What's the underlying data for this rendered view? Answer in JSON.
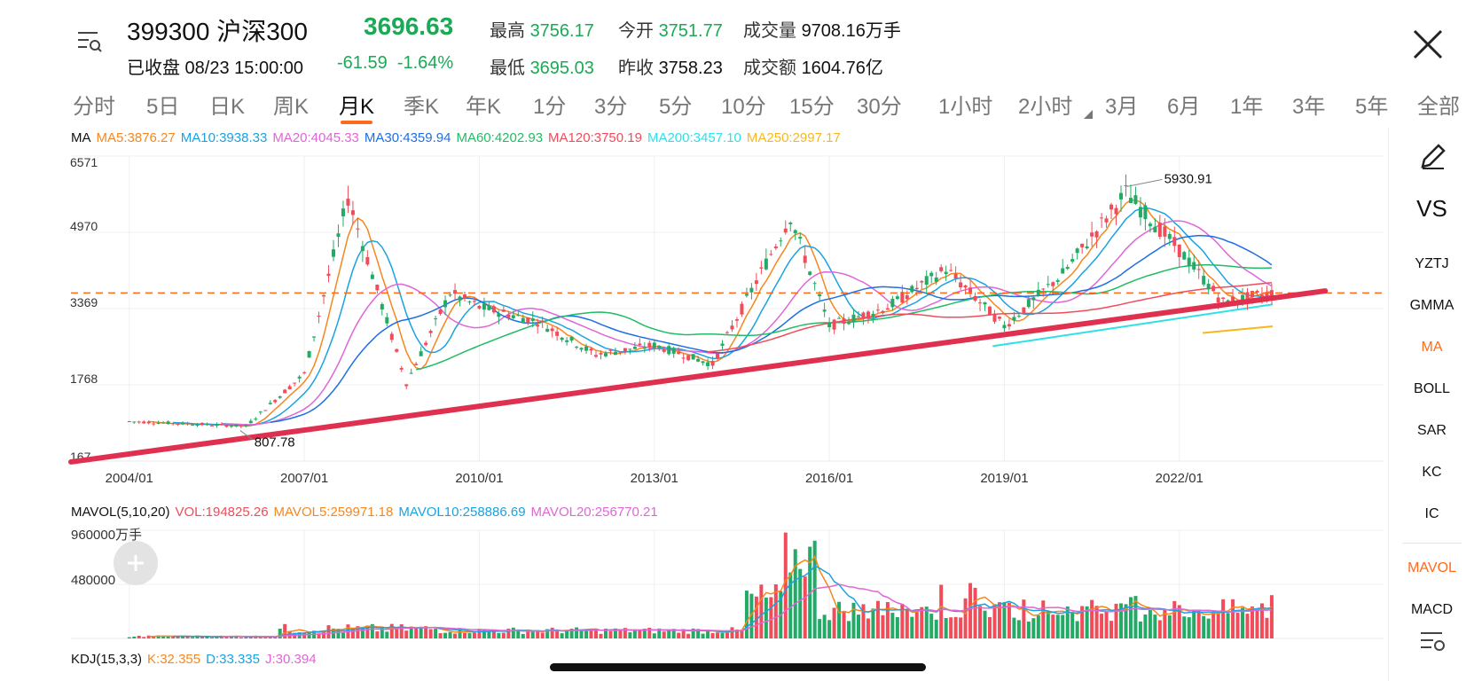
{
  "header": {
    "code_name": "399300 沪深300",
    "price": "3696.63",
    "status": "已收盘 08/23 15:00:00",
    "change": "-61.59",
    "change_pct": "-1.64%",
    "high_label": "最高",
    "high_value": "3756.17",
    "open_label": "今开",
    "open_value": "3751.77",
    "volume_label": "成交量",
    "volume_value": "9708.16万手",
    "low_label": "最低",
    "low_value": "3695.03",
    "prev_close_label": "昨收",
    "prev_close_value": "3758.23",
    "amount_label": "成交额",
    "amount_value": "1604.76亿"
  },
  "tabs": [
    "分时",
    "5日",
    "日K",
    "周K",
    "月K",
    "季K",
    "年K",
    "1分",
    "3分",
    "5分",
    "10分",
    "15分",
    "30分",
    "1小时",
    "2小时",
    "3月",
    "6月",
    "1年",
    "3年",
    "5年",
    "全部"
  ],
  "active_tab": "月K",
  "ma_legend": {
    "title": "MA",
    "items": [
      {
        "text": "MA5:3876.27",
        "color": "#f5871f"
      },
      {
        "text": "MA10:3938.33",
        "color": "#1aa3e0"
      },
      {
        "text": "MA20:4045.33",
        "color": "#e066d6"
      },
      {
        "text": "MA30:4359.94",
        "color": "#1e6fe6"
      },
      {
        "text": "MA60:4202.93",
        "color": "#22bb66"
      },
      {
        "text": "MA120:3750.19",
        "color": "#f04c5a"
      },
      {
        "text": "MA200:3457.10",
        "color": "#2ee0e8"
      },
      {
        "text": "MA250:2997.17",
        "color": "#f5b81f"
      }
    ]
  },
  "main_chart": {
    "y_ticks": [
      "6571",
      "4970",
      "3369",
      "1768",
      "167"
    ],
    "x_ticks": [
      "2004/01",
      "2007/01",
      "2010/01",
      "2013/01",
      "2016/01",
      "2019/01",
      "2022/01"
    ],
    "max_label": "5930.91",
    "min_label": "807.78"
  },
  "mavol_legend": {
    "title": "MAVOL(5,10,20)",
    "items": [
      {
        "text": "VOL:194825.26",
        "color": "#f04c5a"
      },
      {
        "text": "MAVOL5:259971.18",
        "color": "#f5871f"
      },
      {
        "text": "MAVOL10:258886.69",
        "color": "#1aa3e0"
      },
      {
        "text": "MAVOL20:256770.21",
        "color": "#e066d6"
      }
    ]
  },
  "vol_chart": {
    "y_ticks": [
      "960000万手",
      "480000"
    ]
  },
  "kdj_legend": {
    "title": "KDJ(15,3,3)",
    "items": [
      {
        "text": "K:32.355",
        "color": "#f5871f"
      },
      {
        "text": "D:33.335",
        "color": "#1aa3e0"
      },
      {
        "text": "J:30.394",
        "color": "#e066d6"
      }
    ]
  },
  "sidebar": {
    "items": [
      "VS",
      "YZTJ",
      "GMMA",
      "MA",
      "BOLL",
      "SAR",
      "KC",
      "IC",
      "MAVOL",
      "MACD"
    ],
    "active_main": "MA",
    "active_sub": "MAVOL"
  },
  "colors": {
    "up": "#f04c5a",
    "down": "#22aa66",
    "accent": "#ff6a1a",
    "trend": "#e03050"
  },
  "chart_data": {
    "type": "candlestick",
    "title": "399300 沪深300 月K",
    "x_labels": [
      "2004/01",
      "2007/01",
      "2010/01",
      "2013/01",
      "2016/01",
      "2019/01",
      "2022/01"
    ],
    "ylim": [
      167,
      6571
    ],
    "y_ticks": [
      167,
      1768,
      3369,
      4970,
      6571
    ],
    "current_price": 3696.63,
    "highest": 5930.91,
    "lowest": 807.78,
    "ma_values": {
      "MA5": 3876.27,
      "MA10": 3938.33,
      "MA20": 4045.33,
      "MA30": 4359.94,
      "MA60": 4202.93,
      "MA120": 3750.19,
      "MA200": 3457.1,
      "MA250": 2997.17
    },
    "approx_close_path": [
      {
        "x": "2004/01",
        "y": 1000
      },
      {
        "x": "2005/01",
        "y": 950
      },
      {
        "x": "2006/01",
        "y": 900
      },
      {
        "x": "2007/01",
        "y": 2000
      },
      {
        "x": "2007/10",
        "y": 5700
      },
      {
        "x": "2008/10",
        "y": 1800
      },
      {
        "x": "2009/07",
        "y": 3700
      },
      {
        "x": "2010/01",
        "y": 3400
      },
      {
        "x": "2011/01",
        "y": 3100
      },
      {
        "x": "2012/01",
        "y": 2400
      },
      {
        "x": "2013/01",
        "y": 2600
      },
      {
        "x": "2014/01",
        "y": 2200
      },
      {
        "x": "2015/05",
        "y": 5300
      },
      {
        "x": "2016/01",
        "y": 3000
      },
      {
        "x": "2017/01",
        "y": 3400
      },
      {
        "x": "2018/01",
        "y": 4200
      },
      {
        "x": "2019/01",
        "y": 3000
      },
      {
        "x": "2020/01",
        "y": 4100
      },
      {
        "x": "2021/02",
        "y": 5800
      },
      {
        "x": "2022/01",
        "y": 4600
      },
      {
        "x": "2022/10",
        "y": 3500
      },
      {
        "x": "2023/08",
        "y": 3697
      }
    ],
    "volume_ylim": [
      0,
      960000
    ]
  }
}
